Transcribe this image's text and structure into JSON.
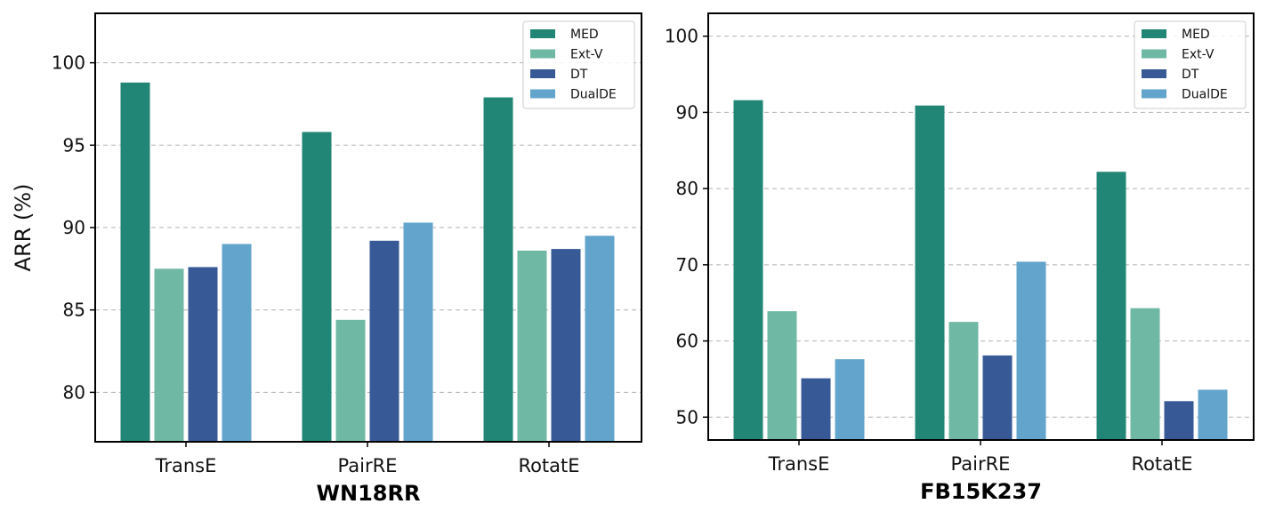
{
  "chart_data": [
    {
      "type": "bar",
      "xlabel": "WN18RR",
      "ylabel": "ARR (%)",
      "categories": [
        "TransE",
        "PairRE",
        "RotatE"
      ],
      "series": [
        {
          "name": "MED",
          "color": "#218675",
          "values": [
            98.8,
            95.8,
            97.9
          ]
        },
        {
          "name": "Ext-V",
          "color": "#6fb8a3",
          "values": [
            87.5,
            84.4,
            88.6
          ]
        },
        {
          "name": "DT",
          "color": "#375a96",
          "values": [
            87.6,
            89.2,
            88.7
          ]
        },
        {
          "name": "DualDE",
          "color": "#62a4cb",
          "values": [
            89.0,
            90.3,
            89.5
          ]
        }
      ],
      "ylim": [
        77,
        103
      ],
      "yticks": [
        80,
        85,
        90,
        95,
        100
      ],
      "grid": "horizontal-dashed",
      "legend": "top-right"
    },
    {
      "type": "bar",
      "xlabel": "FB15K237",
      "ylabel": "",
      "categories": [
        "TransE",
        "PairRE",
        "RotatE"
      ],
      "series": [
        {
          "name": "MED",
          "color": "#218675",
          "values": [
            91.6,
            90.9,
            82.2
          ]
        },
        {
          "name": "Ext-V",
          "color": "#6fb8a3",
          "values": [
            63.9,
            62.5,
            64.3
          ]
        },
        {
          "name": "DT",
          "color": "#375a96",
          "values": [
            55.1,
            58.1,
            52.1
          ]
        },
        {
          "name": "DualDE",
          "color": "#62a4cb",
          "values": [
            57.6,
            70.4,
            53.6
          ]
        }
      ],
      "ylim": [
        47,
        103
      ],
      "yticks": [
        50,
        60,
        70,
        80,
        90,
        100
      ],
      "grid": "horizontal-dashed",
      "legend": "top-right"
    }
  ]
}
